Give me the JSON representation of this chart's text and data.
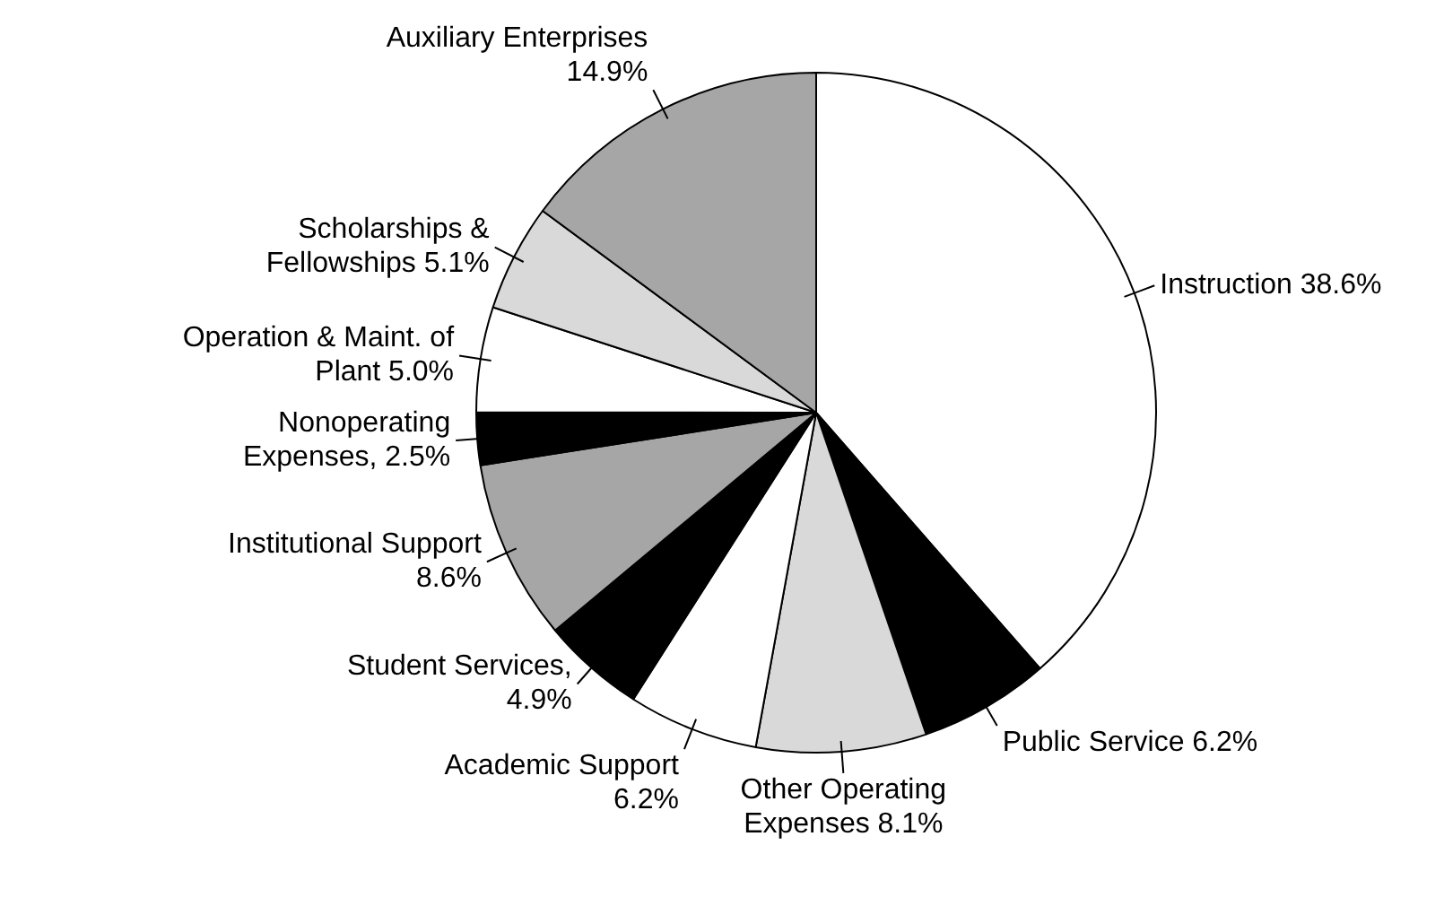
{
  "chart_data": {
    "type": "pie",
    "categories": [
      "Instruction",
      "Public Service",
      "Other Operating Expenses",
      "Academic Support",
      "Student Services",
      "Institutional Support",
      "Nonoperating Expenses",
      "Operation & Maint. of Plant",
      "Scholarships & Fellowships",
      "Auxiliary Enterprises"
    ],
    "values": [
      38.6,
      6.2,
      8.1,
      6.2,
      4.9,
      8.6,
      2.5,
      5.0,
      5.1,
      14.9
    ],
    "value_labels": [
      "38.6%",
      "6.2%",
      "8.1%",
      "6.2%",
      ", 4.9%",
      "8.6%",
      ", 2.5%",
      "5.0%",
      "5.1%",
      "14.9%"
    ],
    "colors": [
      "#ffffff",
      "#000000",
      "#d9d9d9",
      "#ffffff",
      "#000000",
      "#a6a6a6",
      "#000000",
      "#ffffff",
      "#d9d9d9",
      "#a6a6a6"
    ],
    "legend": false
  }
}
